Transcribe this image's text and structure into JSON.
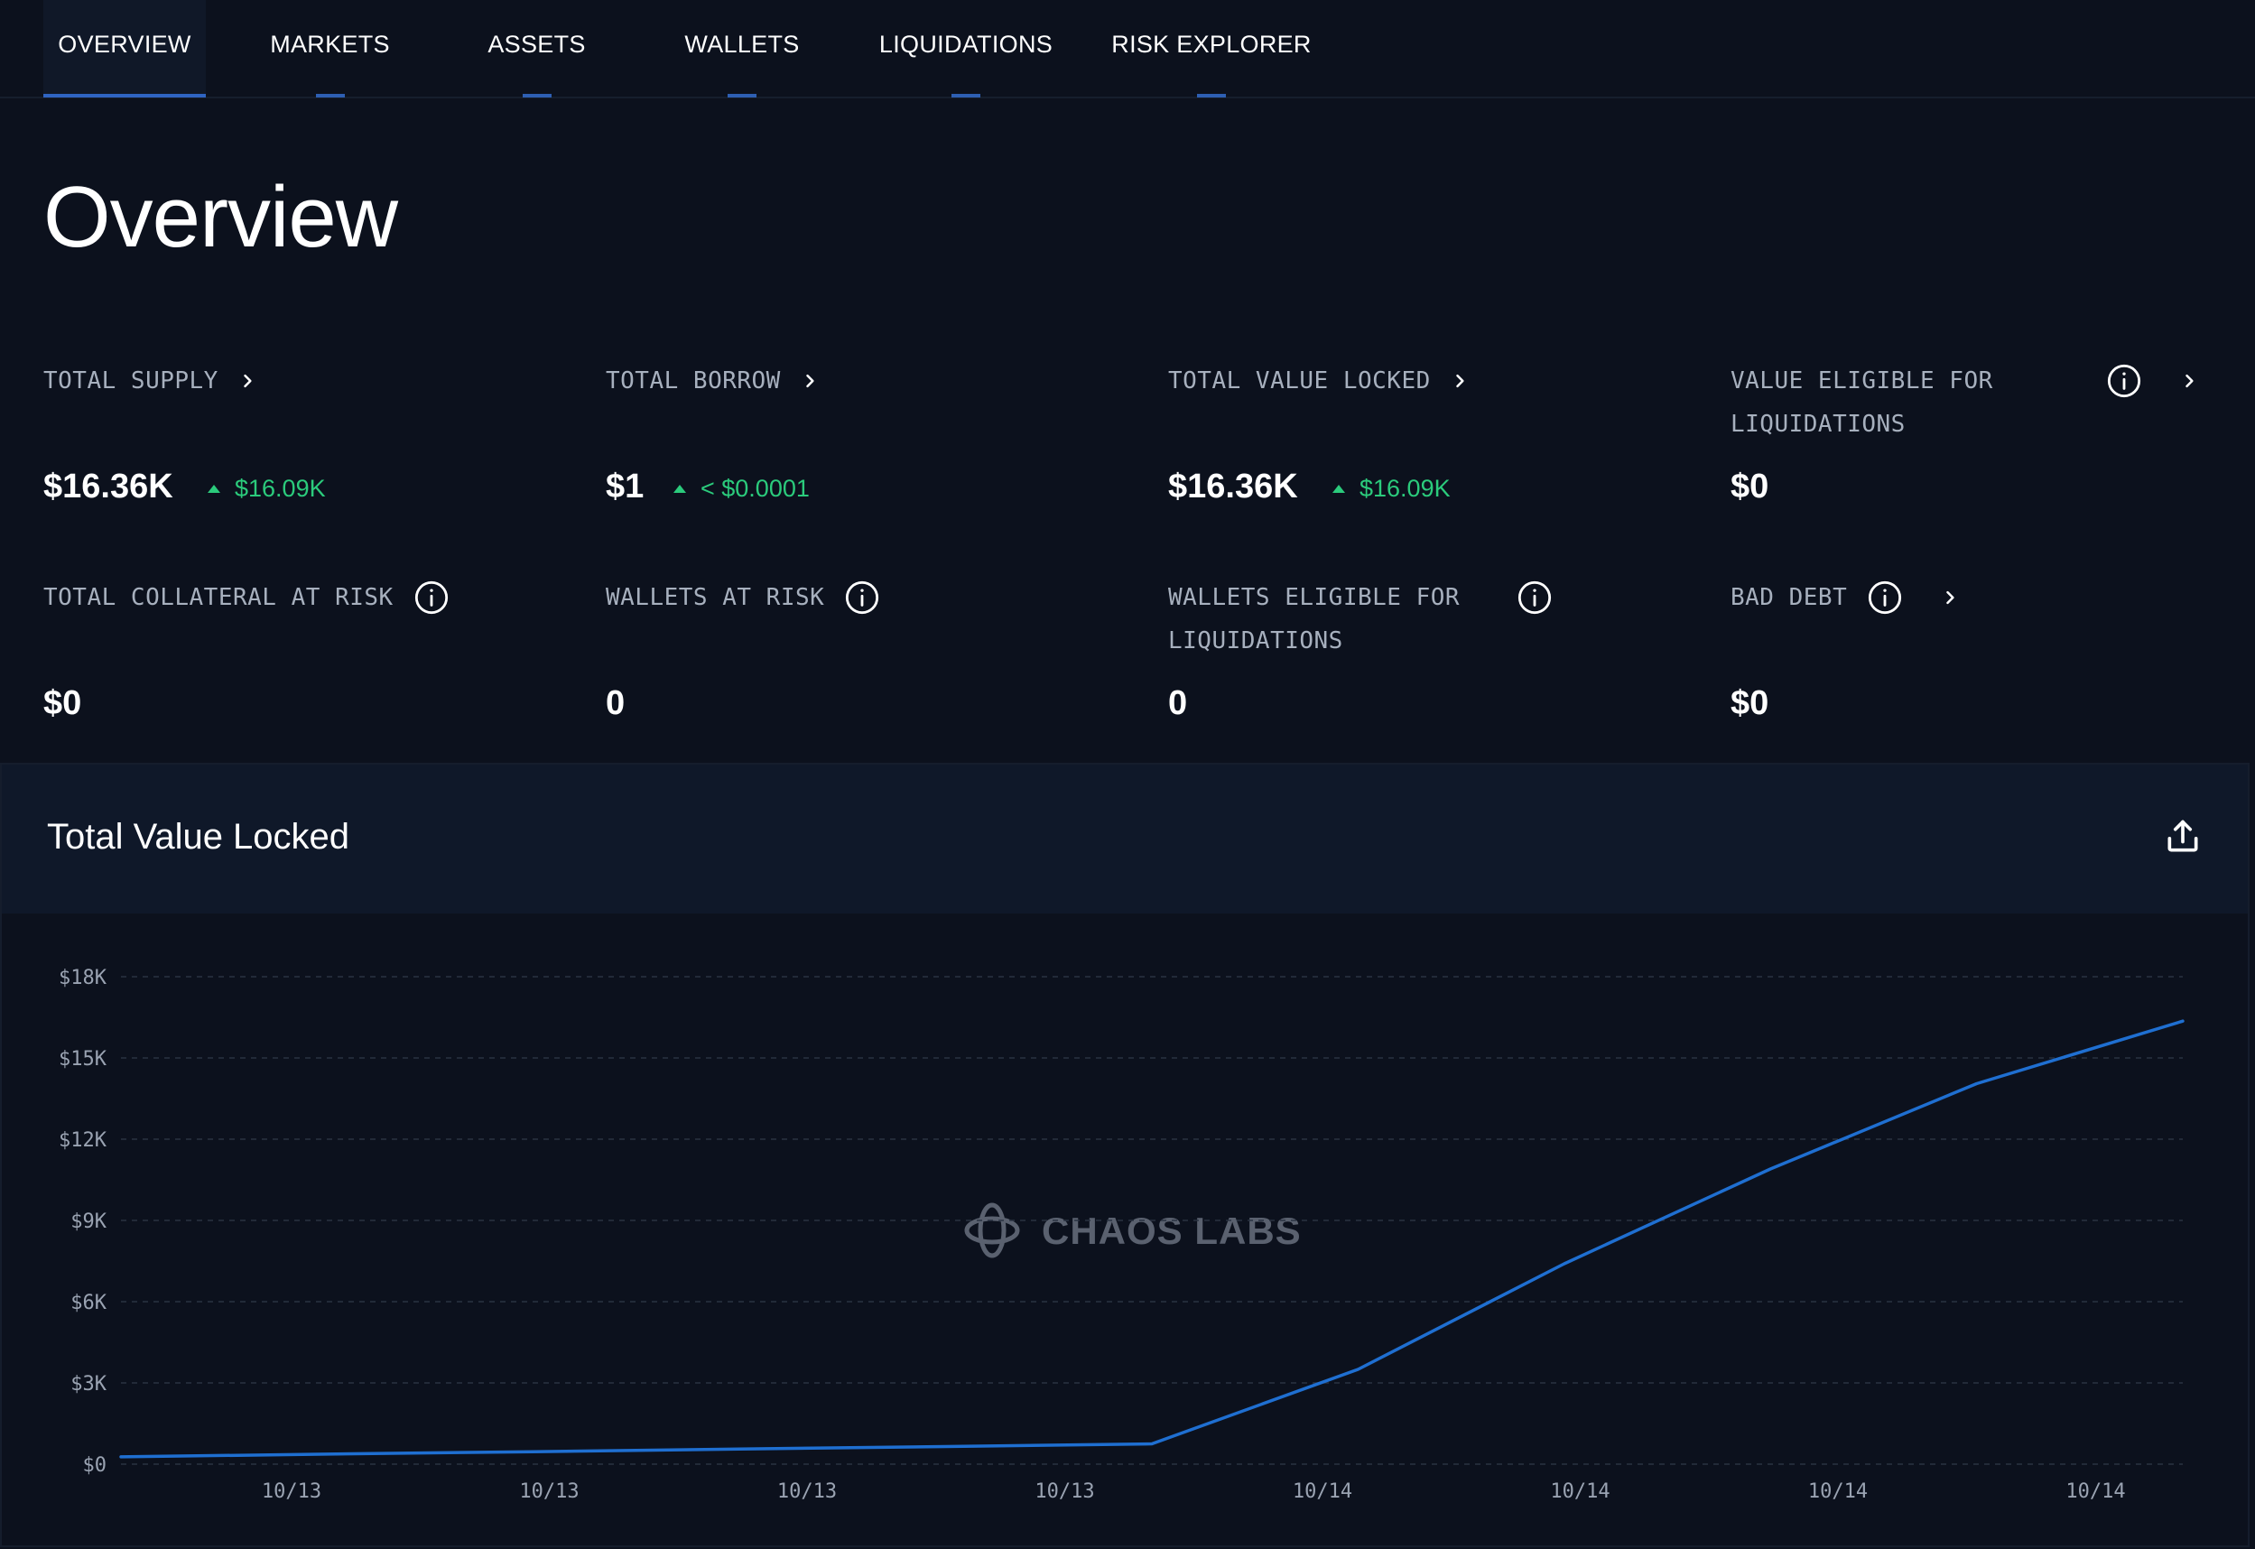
{
  "nav": {
    "tabs": [
      {
        "label": "OVERVIEW",
        "active": true
      },
      {
        "label": "MARKETS",
        "active": false
      },
      {
        "label": "ASSETS",
        "active": false
      },
      {
        "label": "WALLETS",
        "active": false
      },
      {
        "label": "LIQUIDATIONS",
        "active": false
      },
      {
        "label": "RISK EXPLORER",
        "active": false
      }
    ]
  },
  "page": {
    "title": "Overview"
  },
  "metrics": [
    {
      "label": "TOTAL SUPPLY",
      "value": "$16.36K",
      "delta": "$16.09K",
      "has_link": true,
      "has_info": false
    },
    {
      "label": "TOTAL BORROW",
      "value": "$1",
      "delta": "< $0.0001",
      "has_link": true,
      "has_info": false
    },
    {
      "label": "TOTAL VALUE LOCKED",
      "value": "$16.36K",
      "delta": "$16.09K",
      "has_link": true,
      "has_info": false
    },
    {
      "label": "VALUE ELIGIBLE FOR LIQUIDATIONS",
      "value": "$0",
      "delta": "",
      "has_link": true,
      "has_info": true
    },
    {
      "label": "TOTAL COLLATERAL AT RISK",
      "value": "$0",
      "delta": "",
      "has_link": false,
      "has_info": true
    },
    {
      "label": "WALLETS AT RISK",
      "value": "0",
      "delta": "",
      "has_link": false,
      "has_info": true
    },
    {
      "label": "WALLETS ELIGIBLE FOR LIQUIDATIONS",
      "value": "0",
      "delta": "",
      "has_link": false,
      "has_info": true
    },
    {
      "label": "BAD DEBT",
      "value": "$0",
      "delta": "",
      "has_link": true,
      "has_info": true
    }
  ],
  "chart": {
    "title": "Total Value Locked",
    "watermark": "CHAOS LABS"
  },
  "colors": {
    "background": "#0c111d",
    "accent": "#2f64c2",
    "positive": "#2bcb7c",
    "line": "#1f6fd1"
  },
  "chart_data": {
    "type": "line",
    "title": "Total Value Locked",
    "xlabel": "",
    "ylabel": "",
    "x_tick_labels": [
      "10/13",
      "10/13",
      "10/13",
      "10/13",
      "10/14",
      "10/14",
      "10/14",
      "10/14"
    ],
    "y_tick_labels": [
      "$0",
      "$3K",
      "$6K",
      "$9K",
      "$12K",
      "$15K",
      "$18K"
    ],
    "ylim": [
      0,
      18000
    ],
    "grid": true,
    "legend": "none",
    "series": [
      {
        "x": [
          0,
          4,
          8,
          12,
          16,
          20,
          24,
          28,
          32,
          36,
          40
        ],
        "values": [
          270,
          370,
          460,
          560,
          650,
          750,
          3500,
          7400,
          10900,
          14050,
          16360
        ]
      }
    ]
  }
}
